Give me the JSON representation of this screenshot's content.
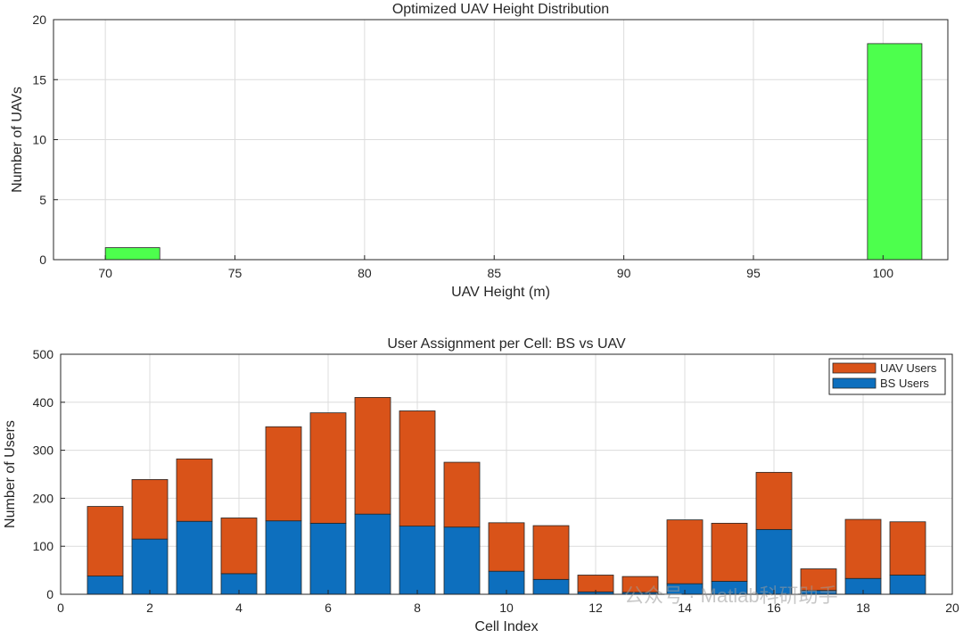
{
  "chart_data": [
    {
      "type": "bar",
      "title": "Optimized UAV Height Distribution",
      "xlabel": "UAV Height (m)",
      "ylabel": "Number of UAVs",
      "xlim": [
        68,
        102.5
      ],
      "ylim": [
        0,
        20
      ],
      "xticks": [
        70,
        75,
        80,
        85,
        90,
        95,
        100
      ],
      "yticks": [
        0,
        5,
        10,
        15,
        20
      ],
      "bars": [
        {
          "x0": 70,
          "x1": 72.1,
          "value": 1
        },
        {
          "x0": 99.4,
          "x1": 101.5,
          "value": 18
        }
      ],
      "bar_color": "#4dff4d",
      "grid": true
    },
    {
      "type": "bar",
      "stacked": true,
      "title": "User Assignment per Cell: BS vs UAV",
      "xlabel": "Cell Index",
      "ylabel": "Number of Users",
      "xlim": [
        0,
        20
      ],
      "ylim": [
        0,
        500
      ],
      "xticks": [
        0,
        2,
        4,
        6,
        8,
        10,
        12,
        14,
        16,
        18,
        20
      ],
      "yticks": [
        0,
        100,
        200,
        300,
        400,
        500
      ],
      "categories": [
        1,
        2,
        3,
        4,
        5,
        6,
        7,
        8,
        9,
        10,
        11,
        12,
        13,
        14,
        15,
        16,
        17,
        18,
        19
      ],
      "series": [
        {
          "name": "BS Users",
          "color": "#0d6fbe",
          "values": [
            38,
            115,
            152,
            43,
            153,
            148,
            167,
            142,
            140,
            48,
            31,
            5,
            4,
            22,
            27,
            135,
            8,
            33,
            40
          ]
        },
        {
          "name": "UAV Users",
          "color": "#d95319",
          "values": [
            145,
            124,
            130,
            116,
            196,
            230,
            243,
            240,
            135,
            101,
            112,
            35,
            33,
            133,
            121,
            119,
            45,
            123,
            111
          ]
        }
      ],
      "legend": {
        "placement": "top-right",
        "entries": [
          "UAV Users",
          "BS Users"
        ]
      },
      "grid": true
    }
  ],
  "watermark": {
    "text": "公众号 · Matlab科研助手"
  }
}
